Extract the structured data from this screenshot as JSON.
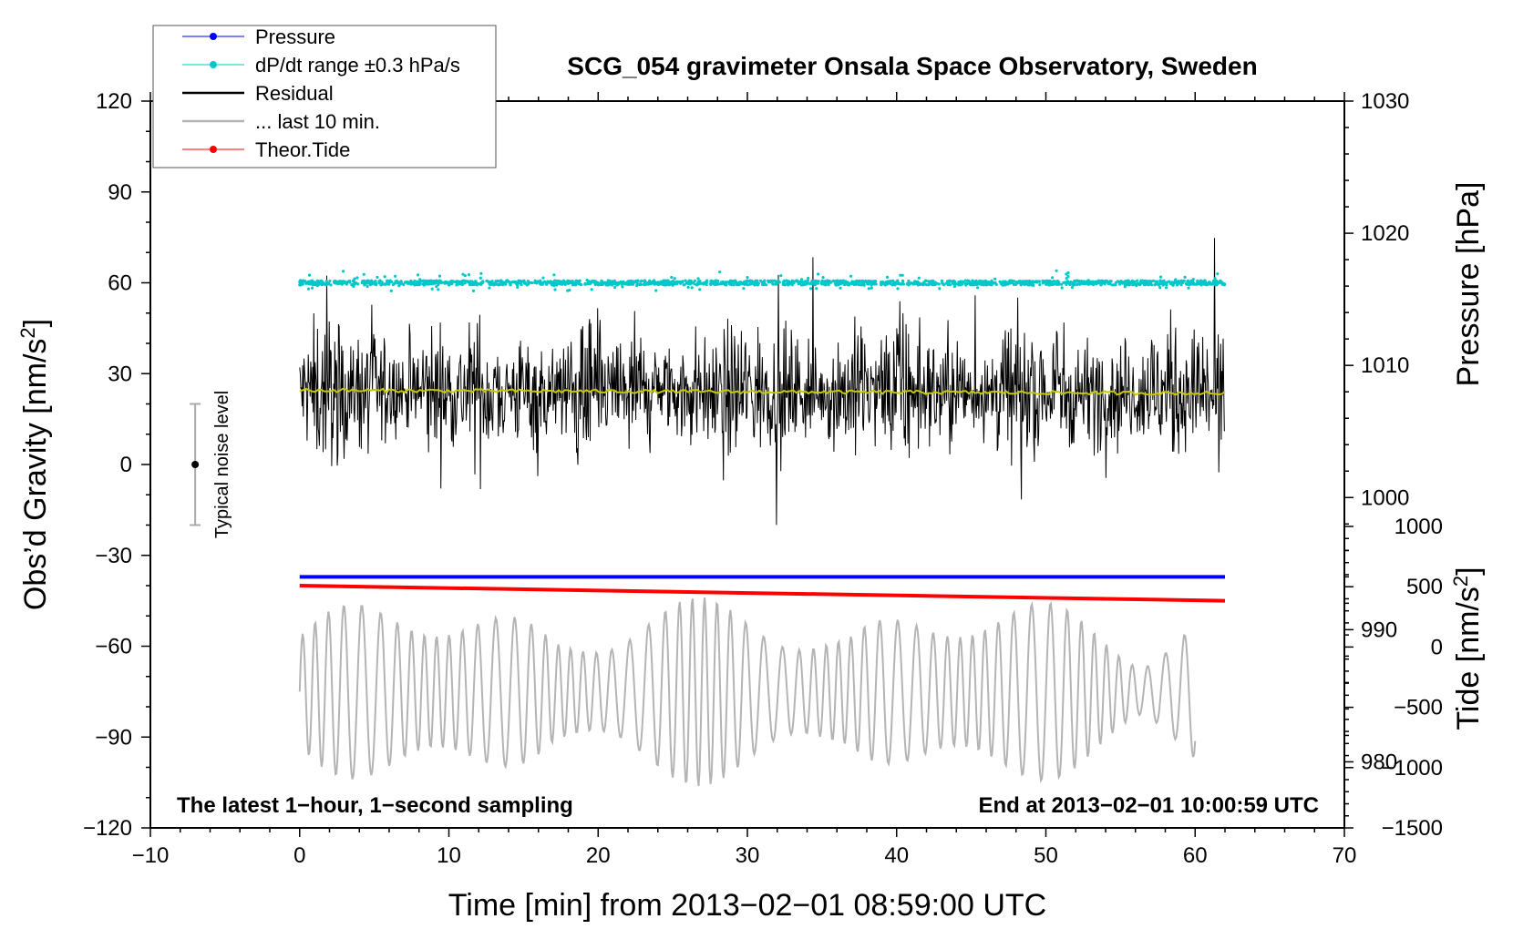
{
  "chart_data": {
    "type": "line",
    "title": "SCG_054 gravimeter Onsala Space Observatory, Sweden",
    "xlabel": "Time [min] from 2013−02−01 08:59:00 UTC",
    "ylabel_left": "Obs’d Gravity [nm/s²]",
    "ylabel_left_main": "Obs’d Gravity [nm/s",
    "ylabel_left_sup": "2",
    "ylabel_left_end": "]",
    "ylabel_right_top": "Pressure [hPa]",
    "ylabel_right_bottom": "Tide [nm/s²]",
    "ylabel_right_bottom_main": "Tide [nm/s",
    "ylabel_right_bottom_sup": "2",
    "ylabel_right_bottom_end": "]",
    "xlim": [
      -10,
      70
    ],
    "ylim_left": [
      -120,
      120
    ],
    "ylim_right_pressure": [
      975,
      1030
    ],
    "ylim_right_tide": [
      -1500,
      1000
    ],
    "x_ticks": [
      "−10",
      "0",
      "10",
      "20",
      "30",
      "40",
      "50",
      "60",
      "70"
    ],
    "x_tick_values": [
      -10,
      0,
      10,
      20,
      30,
      40,
      50,
      60,
      70
    ],
    "y_ticks_left": [
      "120",
      "90",
      "60",
      "30",
      "0",
      "−30",
      "−60",
      "−90",
      "−120"
    ],
    "y_tick_values_left": [
      120,
      90,
      60,
      30,
      0,
      -30,
      -60,
      -90,
      -120
    ],
    "y_ticks_right_pressure": [
      "1030",
      "1020",
      "1010",
      "1000",
      "990",
      "980"
    ],
    "y_tick_values_right_pressure": [
      1030,
      1020,
      1010,
      1000,
      990,
      980
    ],
    "y_ticks_right_tide": [
      "1000",
      "500",
      "0",
      "−500",
      "−1000",
      "−1500"
    ],
    "y_tick_values_right_tide": [
      1000,
      500,
      0,
      -500,
      -1000,
      -1500
    ],
    "legend": [
      {
        "label": "Pressure",
        "color": "#0000ff",
        "marker": true
      },
      {
        "label": "dP/dt range ±0.3 hPa/s",
        "color": "#00c8c8",
        "marker": true
      },
      {
        "label": "Residual",
        "color": "#000000",
        "marker": false
      },
      {
        "label": "... last 10 min.",
        "color": "#b4b4b4",
        "marker": false
      },
      {
        "label": "Theor.Tide",
        "color": "#ff0000",
        "marker": true
      }
    ],
    "series": [
      {
        "name": "Pressure",
        "axis": "pressure",
        "color": "#0000ff",
        "x": [
          0,
          30,
          62
        ],
        "y": [
          994,
          994,
          994
        ]
      },
      {
        "name": "dP/dt range ±0.3 hPa/s",
        "axis": "left",
        "color": "#00c8c8",
        "center": 60,
        "spread": 1.5,
        "x_range": [
          0,
          62
        ]
      },
      {
        "name": "Residual",
        "axis": "left",
        "color": "#000000",
        "center": 24,
        "typical_amplitude": 12,
        "x_range": [
          0,
          62
        ]
      },
      {
        "name": "Residual mean",
        "axis": "left",
        "color": "#c8c800",
        "x": [
          0,
          62
        ],
        "y": [
          24.5,
          23.5
        ]
      },
      {
        "name": "Theor.Tide",
        "axis": "left",
        "color": "#ff0000",
        "x": [
          0,
          62
        ],
        "y": [
          -40,
          -45
        ]
      },
      {
        "name": "... last 10 min.",
        "axis": "left",
        "color": "#b4b4b4",
        "center": -75,
        "typical_amplitude": 20,
        "x_range": [
          0,
          60
        ]
      }
    ],
    "noise_bar": {
      "x": -7,
      "center": 0,
      "low": -20,
      "high": 20,
      "label": "Typical noise level"
    },
    "annotations": {
      "bottom_left": "The latest 1−hour, 1−second sampling",
      "bottom_right": "End at 2013−02−01 10:00:59 UTC"
    },
    "grid": false,
    "legend_position": "top-left"
  }
}
